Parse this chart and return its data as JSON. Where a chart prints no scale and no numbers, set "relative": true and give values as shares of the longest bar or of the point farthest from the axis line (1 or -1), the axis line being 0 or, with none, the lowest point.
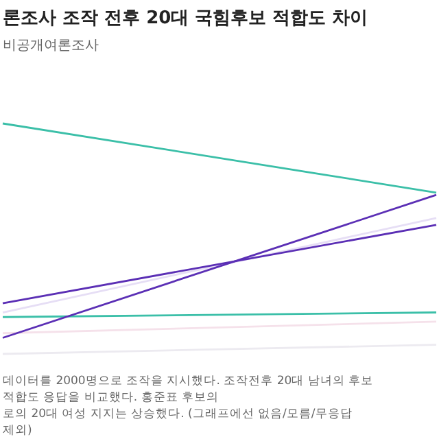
{
  "chart_data": {
    "type": "line",
    "title": "론조사 조작 전후 20대 국힘후보 적합도 차이",
    "subtitle": "비공개여론조사",
    "relative": true,
    "categories": [
      null,
      null
    ],
    "series": [
      {
        "color": "#eceaf0",
        "values": [
          0.0,
          0.04
        ]
      },
      {
        "color": "#f5e1ea",
        "values": [
          0.09,
          0.14
        ]
      },
      {
        "color": "#e6def5",
        "values": [
          0.18,
          0.59
        ]
      },
      {
        "color": "#3bbfa8",
        "values": [
          0.16,
          0.18
        ]
      },
      {
        "color": "#5b2fb5",
        "values": [
          0.22,
          0.56
        ]
      },
      {
        "color": "#5b2fb5",
        "values": [
          0.07,
          0.69
        ]
      },
      {
        "color": "#3bbfa8",
        "values": [
          1,
          0.7
        ]
      }
    ],
    "annotations": [
      "데이터를 2000명으로 조작을 지시했다. 조작전후 20대 남녀의 후보 적합도 응답을 비교했다. 홍준표 후보의",
      "로의 20대 여성 지지는 상승했다. (그래프에선 없음/모름/무응답 제외)"
    ]
  }
}
